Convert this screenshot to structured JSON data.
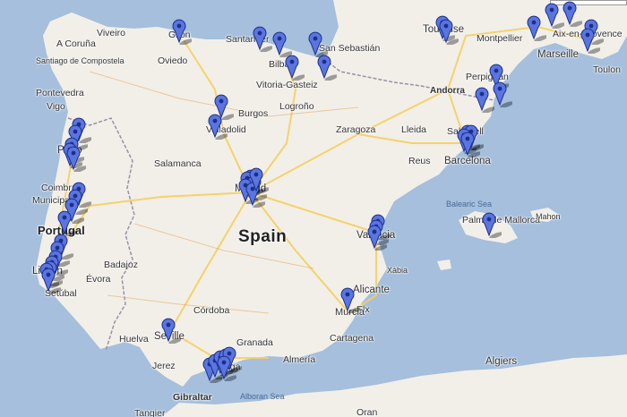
{
  "map": {
    "countries": {
      "spain": "Spain",
      "portugal": "Portugal",
      "andorra": "Andorra"
    },
    "seas": {
      "balearic": "Balearic Sea",
      "alboran": "Alboran Sea"
    },
    "places": [
      {
        "key": "viveiro",
        "label": "Viveiro"
      },
      {
        "key": "coruna",
        "label": "A Coruña"
      },
      {
        "key": "santiago",
        "label": "Santiago de Compostela"
      },
      {
        "key": "pontevedra",
        "label": "Pontevedra"
      },
      {
        "key": "vigo",
        "label": "Vigo"
      },
      {
        "key": "gijon",
        "label": "Gijón"
      },
      {
        "key": "oviedo",
        "label": "Oviedo"
      },
      {
        "key": "santander",
        "label": "Santander"
      },
      {
        "key": "bilbao",
        "label": "Bilbao"
      },
      {
        "key": "sansebastian",
        "label": "San Sebastián"
      },
      {
        "key": "vitoria",
        "label": "Vitoria-Gasteiz"
      },
      {
        "key": "logrono",
        "label": "Logroño"
      },
      {
        "key": "burgos",
        "label": "Burgos"
      },
      {
        "key": "valladolid",
        "label": "Valladolid"
      },
      {
        "key": "zaragoza",
        "label": "Zaragoza"
      },
      {
        "key": "lleida",
        "label": "Lleida"
      },
      {
        "key": "reus",
        "label": "Reus"
      },
      {
        "key": "sabadell",
        "label": "Sabadell"
      },
      {
        "key": "barcelona",
        "label": "Barcelona"
      },
      {
        "key": "toulouse",
        "label": "Toulouse"
      },
      {
        "key": "montpellier",
        "label": "Montpellier"
      },
      {
        "key": "aix",
        "label": "Aix-en-Provence"
      },
      {
        "key": "marseille",
        "label": "Marseille"
      },
      {
        "key": "toulon",
        "label": "Toulon"
      },
      {
        "key": "perpignan",
        "label": "Perpignan"
      },
      {
        "key": "porto",
        "label": "Porto"
      },
      {
        "key": "coimbra",
        "label": "Coimbra"
      },
      {
        "key": "municipality",
        "label": "Municipality"
      },
      {
        "key": "lisbon",
        "label": "Lisbon"
      },
      {
        "key": "setubal",
        "label": "Setúbal"
      },
      {
        "key": "evora",
        "label": "Évora"
      },
      {
        "key": "badajoz",
        "label": "Badajoz"
      },
      {
        "key": "salamanca",
        "label": "Salamanca"
      },
      {
        "key": "madrid",
        "label": "Madrid"
      },
      {
        "key": "valencia",
        "label": "Valencia"
      },
      {
        "key": "palma",
        "label": "Palma de Mallorca"
      },
      {
        "key": "mahon",
        "label": "Mahon"
      },
      {
        "key": "xabia",
        "label": "Xàbia"
      },
      {
        "key": "alicante",
        "label": "Alicante"
      },
      {
        "key": "elx",
        "label": "Elx"
      },
      {
        "key": "murcia",
        "label": "Murcia"
      },
      {
        "key": "cartagena",
        "label": "Cartagena"
      },
      {
        "key": "cordoba",
        "label": "Córdoba"
      },
      {
        "key": "huelva",
        "label": "Huelva"
      },
      {
        "key": "sevilla",
        "label": "Seville"
      },
      {
        "key": "granada",
        "label": "Granada"
      },
      {
        "key": "almeria",
        "label": "Almería"
      },
      {
        "key": "jerez",
        "label": "Jerez"
      },
      {
        "key": "malaga",
        "label": "Málaga"
      },
      {
        "key": "gibraltar",
        "label": "Gibraltar"
      },
      {
        "key": "tangier",
        "label": "Tangier"
      },
      {
        "key": "algiers",
        "label": "Algiers"
      },
      {
        "key": "oran",
        "label": "Oran"
      }
    ],
    "pin_color": "#5a74e0",
    "water_color": "#a5bfdd",
    "land_color": "#f2efe9"
  }
}
